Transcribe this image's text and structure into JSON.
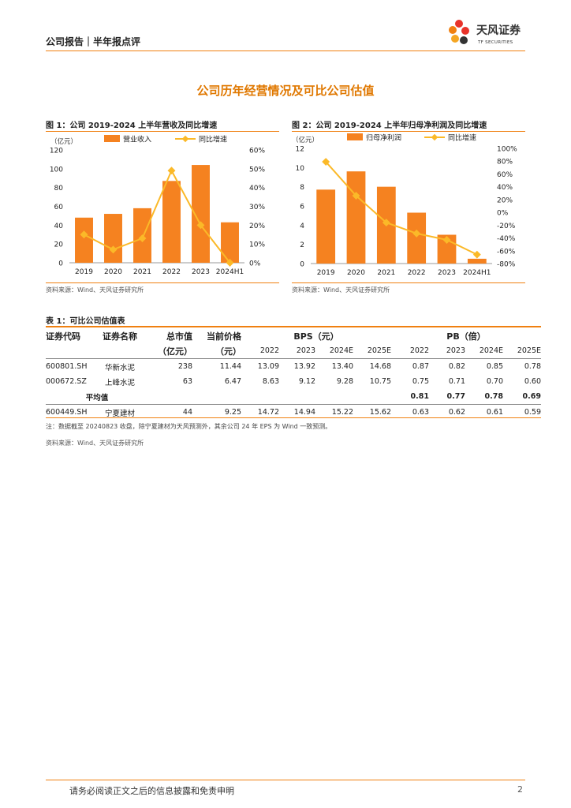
{
  "header": {
    "category": "公司报告｜半年报点评",
    "logo_cn": "天风证券",
    "logo_en": "TF SECURITIES"
  },
  "section_title": "公司历年经营情况及可比公司估值",
  "colors": {
    "bar": "#f58220",
    "line": "#fbb928",
    "accent": "#f08010",
    "title": "#e07800"
  },
  "chart_data": [
    {
      "type": "bar",
      "caption": "图 1：公司 2019-2024 上半年营收及同比增速",
      "unit_label": "（亿元）",
      "categories": [
        "2019",
        "2020",
        "2021",
        "2022",
        "2023",
        "2024H1"
      ],
      "series": [
        {
          "name": "营业收入",
          "type": "bar",
          "axis": "left",
          "values": [
            48,
            52,
            58,
            87,
            104,
            43
          ]
        },
        {
          "name": "同比增速",
          "type": "line",
          "axis": "right",
          "values": [
            0.15,
            0.07,
            0.13,
            0.49,
            0.2,
            0.0
          ]
        }
      ],
      "left_axis": {
        "min": 0,
        "max": 120,
        "ticks": [
          "0",
          "20",
          "40",
          "60",
          "80",
          "100",
          "120"
        ]
      },
      "right_axis": {
        "min": 0,
        "max": 0.6,
        "ticks": [
          "0%",
          "10%",
          "20%",
          "30%",
          "40%",
          "50%",
          "60%"
        ]
      },
      "legend": "top",
      "source": "资料来源：Wind、天风证券研究所"
    },
    {
      "type": "bar",
      "caption": "图 2：公司 2019-2024 上半年归母净利润及同比增速",
      "unit_label": "（亿元）",
      "categories": [
        "2019",
        "2020",
        "2021",
        "2022",
        "2023",
        "2024H1"
      ],
      "series": [
        {
          "name": "归母净利润",
          "type": "bar",
          "axis": "left",
          "values": [
            7.7,
            9.6,
            8.0,
            5.3,
            3.0,
            0.5
          ]
        },
        {
          "name": "同比增速",
          "type": "line",
          "axis": "right",
          "values": [
            0.79,
            0.26,
            -0.16,
            -0.33,
            -0.43,
            -0.66
          ]
        }
      ],
      "left_axis": {
        "min": 0,
        "max": 12,
        "ticks": [
          "0",
          "2",
          "4",
          "6",
          "8",
          "10",
          "12"
        ]
      },
      "right_axis": {
        "min": -0.8,
        "max": 1.0,
        "ticks": [
          "-80%",
          "-60%",
          "-40%",
          "-20%",
          "0%",
          "20%",
          "40%",
          "60%",
          "80%",
          "100%"
        ]
      },
      "legend": "top",
      "source": "资料来源：Wind、天风证券研究所"
    }
  ],
  "table": {
    "caption": "表 1：可比公司估值表",
    "headers": {
      "code": "证券代码",
      "name": "证券名称",
      "mcap": "总市值",
      "mcap_unit": "（亿元）",
      "price": "当前价格",
      "price_unit": "（元）",
      "bps": "BPS（元）",
      "pb": "PB（倍）",
      "years": [
        "2022",
        "2023",
        "2024E",
        "2025E"
      ]
    },
    "rows": [
      {
        "code": "600801.SH",
        "name": "华新水泥",
        "mcap": "238",
        "price": "11.44",
        "bps": [
          "13.09",
          "13.92",
          "13.40",
          "14.68"
        ],
        "pb": [
          "0.87",
          "0.82",
          "0.85",
          "0.78"
        ]
      },
      {
        "code": "000672.SZ",
        "name": "上峰水泥",
        "mcap": "63",
        "price": "6.47",
        "bps": [
          "8.63",
          "9.12",
          "9.28",
          "10.75"
        ],
        "pb": [
          "0.75",
          "0.71",
          "0.70",
          "0.60"
        ]
      }
    ],
    "avg": {
      "label": "平均值",
      "pb": [
        "0.81",
        "0.77",
        "0.78",
        "0.69"
      ]
    },
    "target": {
      "code": "600449.SH",
      "name": "宁夏建材",
      "mcap": "44",
      "price": "9.25",
      "bps": [
        "14.72",
        "14.94",
        "15.22",
        "15.62"
      ],
      "pb": [
        "0.63",
        "0.62",
        "0.61",
        "0.59"
      ]
    },
    "note": "注：数据截至 20240823 收盘，除宁夏建材为天风预测外，其余公司 24 年 EPS 为 Wind 一致预测。",
    "source": "资料来源：Wind、天风证券研究所"
  },
  "footer": {
    "disclaimer": "请务必阅读正文之后的信息披露和免责申明",
    "page": "2"
  }
}
